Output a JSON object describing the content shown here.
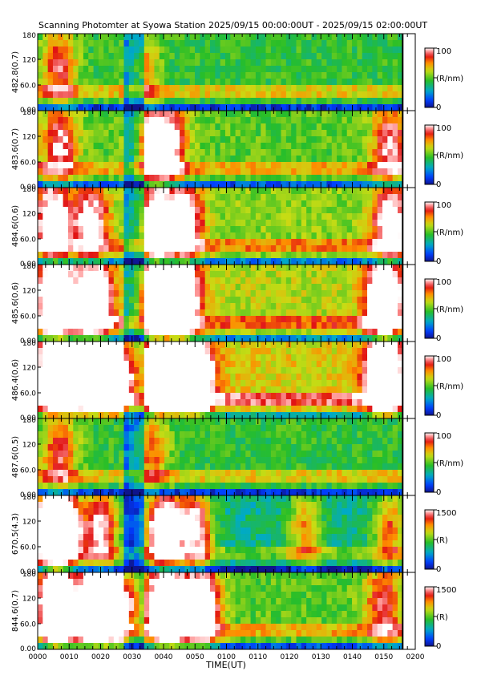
{
  "title": "Scanning Photomter at Syowa Station 2025/09/15 00:00:00UT - 2025/09/15 02:00:00UT",
  "chart_data": {
    "type": "heatmap",
    "xlabel": "TIME(UT)",
    "x_ticks": [
      "0000",
      "0010",
      "0020",
      "0030",
      "0040",
      "0050",
      "0100",
      "0110",
      "0120",
      "0130",
      "0140",
      "0150",
      "0200"
    ],
    "x_range_minutes": [
      0,
      120
    ],
    "data_end_minute": 116,
    "y_ticks": [
      "0.00",
      "60.0",
      "120",
      "180"
    ],
    "y_range": [
      0,
      180
    ],
    "panels": [
      {
        "ylabel": "482.8(0.7)",
        "cbar_max": "100",
        "cbar_min": "0",
        "unit": "(R/nm)",
        "scale": 100,
        "base": 0.45,
        "bursts": [
          [
            7,
            0.45
          ],
          [
            33,
            0.3
          ]
        ],
        "ridge": 0.2
      },
      {
        "ylabel": "483.6(0.7)",
        "cbar_max": "100",
        "cbar_min": "0",
        "unit": "(R/nm)",
        "scale": 100,
        "base": 0.5,
        "bursts": [
          [
            7,
            0.5
          ],
          [
            36,
            0.65
          ],
          [
            42,
            0.55
          ],
          [
            112,
            0.5
          ]
        ],
        "ridge": 0.2
      },
      {
        "ylabel": "484.6(0.6)",
        "cbar_max": "100",
        "cbar_min": "0",
        "unit": "(R/nm)",
        "scale": 100,
        "base": 0.55,
        "bursts": [
          [
            5,
            0.7
          ],
          [
            17,
            0.55
          ],
          [
            38,
            0.75
          ],
          [
            47,
            0.6
          ],
          [
            112,
            0.65
          ]
        ],
        "ridge": 0.2
      },
      {
        "ylabel": "485.6(0.6)",
        "cbar_max": "100",
        "cbar_min": "0",
        "unit": "(R/nm)",
        "scale": 100,
        "base": 0.6,
        "bursts": [
          [
            6,
            1.0
          ],
          [
            18,
            0.8
          ],
          [
            38,
            1.0
          ],
          [
            46,
            0.9
          ],
          [
            110,
            0.9
          ]
        ],
        "ridge": 0.2
      },
      {
        "ylabel": "486.4(0.6)",
        "cbar_max": "100",
        "cbar_min": "0",
        "unit": "(R/nm)",
        "scale": 100,
        "base": 0.65,
        "bursts": [
          [
            6,
            1.1
          ],
          [
            17,
            0.9
          ],
          [
            26,
            0.9
          ],
          [
            40,
            1.1
          ],
          [
            50,
            1.0
          ],
          [
            110,
            1.0
          ]
        ],
        "ridge": 0.25
      },
      {
        "ylabel": "487.6(0.5)",
        "cbar_max": "100",
        "cbar_min": "0",
        "unit": "(R/nm)",
        "scale": 100,
        "base": 0.45,
        "bursts": [
          [
            7,
            0.45
          ],
          [
            36,
            0.35
          ]
        ],
        "ridge": 0.2
      },
      {
        "ylabel": "670.5(4.3)",
        "cbar_max": "1500",
        "cbar_min": "0",
        "unit": "(R)",
        "scale": 1500,
        "base": 0.35,
        "bursts": [
          [
            3,
            0.75
          ],
          [
            8,
            1.1
          ],
          [
            20,
            0.7
          ],
          [
            40,
            1.0
          ],
          [
            50,
            0.75
          ],
          [
            85,
            0.4
          ],
          [
            112,
            0.45
          ]
        ],
        "ridge": 0.15
      },
      {
        "ylabel": "844.6(0.7)",
        "cbar_max": "1500",
        "cbar_min": "0",
        "unit": "(R)",
        "scale": 1500,
        "base": 0.5,
        "bursts": [
          [
            6,
            1.2
          ],
          [
            18,
            1.1
          ],
          [
            27,
            0.9
          ],
          [
            41,
            1.2
          ],
          [
            52,
            0.9
          ],
          [
            110,
            0.45
          ]
        ],
        "ridge": 0.2
      }
    ]
  }
}
